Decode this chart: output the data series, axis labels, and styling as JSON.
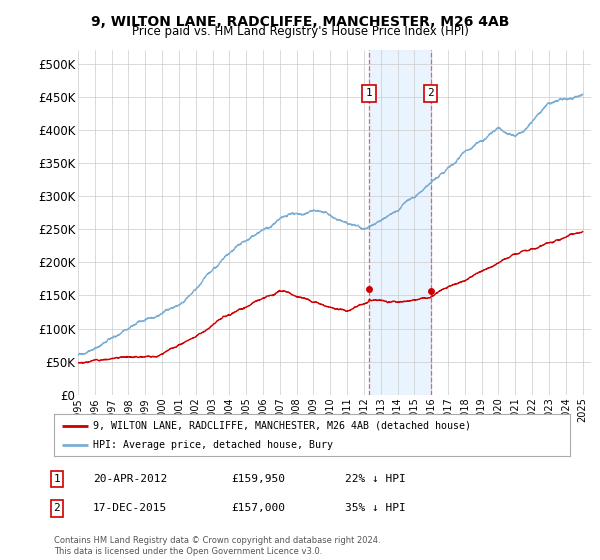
{
  "title": "9, WILTON LANE, RADCLIFFE, MANCHESTER, M26 4AB",
  "subtitle": "Price paid vs. HM Land Registry's House Price Index (HPI)",
  "ylabel_ticks": [
    "£0",
    "£50K",
    "£100K",
    "£150K",
    "£200K",
    "£250K",
    "£300K",
    "£350K",
    "£400K",
    "£450K",
    "£500K"
  ],
  "ytick_values": [
    0,
    50000,
    100000,
    150000,
    200000,
    250000,
    300000,
    350000,
    400000,
    450000,
    500000
  ],
  "ylim": [
    0,
    520000
  ],
  "xlim_start": 1995.0,
  "xlim_end": 2025.5,
  "hpi_color": "#7aadd4",
  "price_color": "#cc0000",
  "marker1_date": 2012.3,
  "marker1_price": 159950,
  "marker1_label": "1",
  "marker1_display": "20-APR-2012",
  "marker1_value_str": "£159,950",
  "marker1_pct": "22% ↓ HPI",
  "marker2_date": 2015.97,
  "marker2_price": 157000,
  "marker2_label": "2",
  "marker2_display": "17-DEC-2015",
  "marker2_value_str": "£157,000",
  "marker2_pct": "35% ↓ HPI",
  "legend_line1": "9, WILTON LANE, RADCLIFFE, MANCHESTER, M26 4AB (detached house)",
  "legend_line2": "HPI: Average price, detached house, Bury",
  "footnote": "Contains HM Land Registry data © Crown copyright and database right 2024.\nThis data is licensed under the Open Government Licence v3.0.",
  "background_color": "#ffffff",
  "grid_color": "#cccccc",
  "shade_color": "#ddeeff",
  "xtick_years": [
    1995,
    1996,
    1997,
    1998,
    1999,
    2000,
    2001,
    2002,
    2003,
    2004,
    2005,
    2006,
    2007,
    2008,
    2009,
    2010,
    2011,
    2012,
    2013,
    2014,
    2015,
    2016,
    2017,
    2018,
    2019,
    2020,
    2021,
    2022,
    2023,
    2024,
    2025
  ]
}
